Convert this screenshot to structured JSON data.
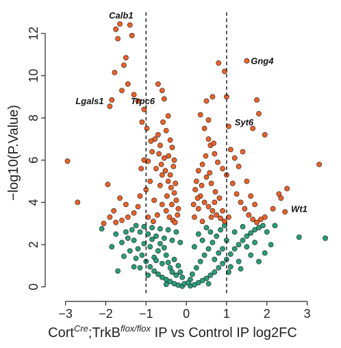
{
  "chart_data": {
    "type": "scatter",
    "title": "",
    "xlabel_parts": {
      "prefix": "Cort",
      "sup1": "Cre",
      "mid": ";TrkB",
      "sup2": "flox/flox",
      "suffix": " IP vs Control IP log2FC"
    },
    "ylabel": "−log10(P.Value)",
    "xlim": [
      -3.3,
      3.5
    ],
    "ylim": [
      -0.3,
      13.0
    ],
    "xticks": [
      -3,
      -2,
      -1,
      0,
      1,
      2,
      3
    ],
    "xtick_labels": [
      "−3",
      "−2",
      "−1",
      "0",
      "1",
      "2",
      "3"
    ],
    "yticks": [
      0,
      2,
      4,
      6,
      8,
      10,
      12
    ],
    "ytick_labels": [
      "0",
      "2",
      "4",
      "6",
      "8",
      "10",
      "12"
    ],
    "vlines": [
      -1,
      1
    ],
    "significance_threshold": 3.0,
    "colors": {
      "significant": "#e8622a",
      "not_significant": "#2a9d78",
      "point_stroke": "#1a1a1a",
      "axis": "#222222",
      "vline": "#111111"
    },
    "series": [
      {
        "points": [
          [
            -1.65,
            12.45
          ],
          [
            -1.75,
            12.2
          ],
          [
            -1.4,
            12.4
          ],
          [
            -1.35,
            11.9
          ],
          [
            -1.7,
            11.75
          ],
          [
            -1.5,
            10.85
          ],
          [
            -1.55,
            10.5
          ],
          [
            -1.78,
            10.15
          ],
          [
            -1.45,
            9.6
          ],
          [
            -1.6,
            9.3
          ],
          [
            -1.85,
            8.85
          ],
          [
            -1.9,
            8.55
          ],
          [
            -1.3,
            9.1
          ],
          [
            -1.2,
            8.8
          ],
          [
            -1.05,
            8.4
          ],
          [
            -0.98,
            7.5
          ],
          [
            -1.1,
            7.8
          ],
          [
            -0.7,
            9.6
          ],
          [
            -0.6,
            9.3
          ],
          [
            -0.55,
            8.9
          ],
          [
            -0.45,
            8.1
          ],
          [
            -0.5,
            7.4
          ],
          [
            -0.4,
            6.95
          ],
          [
            -0.35,
            6.6
          ],
          [
            -0.3,
            6.0
          ],
          [
            -0.7,
            7.2
          ],
          [
            -0.65,
            6.7
          ],
          [
            -0.85,
            6.4
          ],
          [
            -0.95,
            5.95
          ],
          [
            -0.75,
            5.6
          ],
          [
            -0.6,
            5.3
          ],
          [
            -0.45,
            5.0
          ],
          [
            -0.38,
            4.7
          ],
          [
            -0.3,
            4.45
          ],
          [
            -0.25,
            4.1
          ],
          [
            -0.9,
            5.0
          ],
          [
            -1.0,
            4.6
          ],
          [
            -1.15,
            4.3
          ],
          [
            -0.8,
            4.1
          ],
          [
            -0.6,
            3.9
          ],
          [
            -0.5,
            3.6
          ],
          [
            -0.42,
            3.3
          ],
          [
            -0.33,
            3.15
          ],
          [
            -0.28,
            3.05
          ],
          [
            -1.2,
            3.8
          ],
          [
            -1.3,
            3.5
          ],
          [
            -1.45,
            3.3
          ],
          [
            -1.6,
            3.15
          ],
          [
            -1.75,
            3.05
          ],
          [
            -0.2,
            3.7
          ],
          [
            -0.55,
            6.1
          ],
          [
            -0.65,
            4.8
          ],
          [
            -0.72,
            3.4
          ],
          [
            -0.82,
            3.1
          ],
          [
            -0.48,
            4.3
          ],
          [
            -0.36,
            3.9
          ],
          [
            -0.62,
            5.8
          ],
          [
            -0.52,
            5.5
          ],
          [
            -0.68,
            6.3
          ],
          [
            -0.58,
            7.8
          ],
          [
            -0.44,
            6.2
          ],
          [
            -0.78,
            7.0
          ],
          [
            -0.88,
            6.9
          ],
          [
            -1.05,
            6.0
          ],
          [
            -1.12,
            5.6
          ],
          [
            -0.4,
            5.3
          ],
          [
            -0.32,
            5.7
          ],
          [
            -0.27,
            4.9
          ],
          [
            -0.22,
            3.4
          ],
          [
            -0.95,
            3.3
          ],
          [
            -2.95,
            5.95
          ],
          [
            -2.7,
            4.0
          ],
          [
            -1.95,
            4.85
          ],
          [
            -1.8,
            3.6
          ],
          [
            -1.9,
            3.3
          ],
          [
            -2.05,
            3.0
          ],
          [
            -1.65,
            4.2
          ],
          [
            -1.5,
            3.9
          ],
          [
            0.35,
            8.15
          ],
          [
            0.5,
            8.8
          ],
          [
            0.45,
            7.5
          ],
          [
            0.55,
            7.0
          ],
          [
            0.6,
            6.7
          ],
          [
            0.7,
            6.3
          ],
          [
            0.4,
            5.8
          ],
          [
            0.3,
            5.5
          ],
          [
            0.25,
            5.0
          ],
          [
            0.22,
            4.6
          ],
          [
            0.35,
            4.3
          ],
          [
            0.45,
            4.0
          ],
          [
            0.55,
            3.8
          ],
          [
            0.65,
            3.6
          ],
          [
            0.75,
            3.4
          ],
          [
            0.85,
            3.25
          ],
          [
            0.95,
            3.1
          ],
          [
            0.3,
            3.7
          ],
          [
            0.2,
            3.3
          ],
          [
            0.4,
            3.1
          ],
          [
            0.5,
            5.2
          ],
          [
            0.62,
            4.9
          ],
          [
            0.72,
            4.5
          ],
          [
            0.82,
            4.2
          ],
          [
            0.9,
            5.6
          ],
          [
            1.0,
            5.3
          ],
          [
            0.78,
            5.9
          ],
          [
            0.68,
            6.8
          ],
          [
            0.58,
            5.4
          ],
          [
            0.48,
            6.2
          ],
          [
            0.8,
            10.6
          ],
          [
            0.95,
            10.2
          ],
          [
            1.0,
            9.0
          ],
          [
            0.65,
            9.0
          ],
          [
            0.55,
            7.9
          ],
          [
            1.05,
            7.6
          ],
          [
            1.1,
            6.5
          ],
          [
            1.2,
            6.1
          ],
          [
            1.3,
            5.7
          ],
          [
            1.15,
            4.9
          ],
          [
            1.25,
            4.4
          ],
          [
            1.35,
            4.0
          ],
          [
            1.45,
            3.7
          ],
          [
            1.55,
            3.4
          ],
          [
            1.65,
            3.2
          ],
          [
            1.75,
            3.05
          ],
          [
            1.5,
            5.0
          ],
          [
            1.4,
            6.4
          ],
          [
            1.6,
            4.3
          ],
          [
            1.7,
            3.9
          ],
          [
            1.5,
            10.7
          ],
          [
            1.75,
            8.85
          ],
          [
            1.8,
            8.2
          ],
          [
            1.65,
            7.5
          ],
          [
            1.95,
            7.2
          ],
          [
            1.95,
            3.3
          ],
          [
            1.85,
            3.2
          ],
          [
            2.3,
            4.4
          ],
          [
            2.35,
            4.2
          ],
          [
            2.15,
            3.7
          ],
          [
            2.5,
            4.65
          ],
          [
            2.45,
            3.55
          ],
          [
            3.3,
            5.8
          ],
          [
            0.38,
            4.8
          ],
          [
            0.28,
            4.2
          ],
          [
            0.18,
            3.9
          ],
          [
            0.62,
            3.3
          ],
          [
            0.9,
            3.6
          ],
          [
            1.05,
            3.3
          ],
          [
            0.7,
            4.0
          ]
        ]
      },
      {
        "points": [
          [
            -2.1,
            2.75
          ],
          [
            -1.75,
            2.5
          ],
          [
            -1.7,
            0.75
          ],
          [
            -1.55,
            1.45
          ],
          [
            -1.85,
            1.9
          ],
          [
            -1.6,
            2.1
          ],
          [
            -1.45,
            2.3
          ],
          [
            -1.3,
            2.2
          ],
          [
            -1.2,
            1.8
          ],
          [
            -1.1,
            1.5
          ],
          [
            -1.0,
            1.2
          ],
          [
            -0.9,
            0.95
          ],
          [
            -0.8,
            0.75
          ],
          [
            -0.7,
            0.6
          ],
          [
            -0.6,
            0.45
          ],
          [
            -0.5,
            0.35
          ],
          [
            -0.4,
            0.25
          ],
          [
            -0.3,
            0.15
          ],
          [
            -0.2,
            0.08
          ],
          [
            -0.1,
            0.03
          ],
          [
            -1.35,
            2.7
          ],
          [
            -1.15,
            2.6
          ],
          [
            -0.95,
            2.5
          ],
          [
            -0.75,
            2.4
          ],
          [
            -0.55,
            2.3
          ],
          [
            -0.35,
            2.2
          ],
          [
            -0.15,
            2.1
          ],
          [
            -1.25,
            2.9
          ],
          [
            -1.05,
            2.85
          ],
          [
            -0.85,
            2.8
          ],
          [
            -0.65,
            2.75
          ],
          [
            -0.45,
            2.7
          ],
          [
            -0.25,
            2.6
          ],
          [
            -0.9,
            1.9
          ],
          [
            -0.7,
            1.7
          ],
          [
            -0.5,
            1.5
          ],
          [
            -0.3,
            1.3
          ],
          [
            -0.2,
            1.0
          ],
          [
            -0.15,
            0.7
          ],
          [
            -0.1,
            0.45
          ],
          [
            -0.6,
            1.1
          ],
          [
            -0.4,
            0.9
          ],
          [
            -0.8,
            1.4
          ],
          [
            -1.4,
            1.7
          ],
          [
            -1.5,
            2.6
          ],
          [
            -0.05,
            0.15
          ],
          [
            -0.25,
            0.55
          ],
          [
            -0.35,
            0.7
          ],
          [
            -0.45,
            1.15
          ],
          [
            -0.55,
            1.85
          ],
          [
            -0.65,
            2.05
          ],
          [
            -0.75,
            1.25
          ],
          [
            -0.85,
            2.25
          ],
          [
            -1.05,
            2.05
          ],
          [
            -1.25,
            1.35
          ],
          [
            0.1,
            0.05
          ],
          [
            0.2,
            0.1
          ],
          [
            0.3,
            0.2
          ],
          [
            0.4,
            0.3
          ],
          [
            0.5,
            0.4
          ],
          [
            0.6,
            0.55
          ],
          [
            0.7,
            0.7
          ],
          [
            0.8,
            0.9
          ],
          [
            0.9,
            1.1
          ],
          [
            1.0,
            1.3
          ],
          [
            1.1,
            1.55
          ],
          [
            1.2,
            1.8
          ],
          [
            1.3,
            2.0
          ],
          [
            1.4,
            2.2
          ],
          [
            1.5,
            2.4
          ],
          [
            1.6,
            2.55
          ],
          [
            1.7,
            2.7
          ],
          [
            1.8,
            2.8
          ],
          [
            1.9,
            2.9
          ],
          [
            2.0,
            2.6
          ],
          [
            1.95,
            1.6
          ],
          [
            2.1,
            2.0
          ],
          [
            2.2,
            2.9
          ],
          [
            0.15,
            0.6
          ],
          [
            0.25,
            0.9
          ],
          [
            0.35,
            1.2
          ],
          [
            0.45,
            1.5
          ],
          [
            0.55,
            1.8
          ],
          [
            0.65,
            2.1
          ],
          [
            0.75,
            2.4
          ],
          [
            0.85,
            2.7
          ],
          [
            0.95,
            2.9
          ],
          [
            0.3,
            2.5
          ],
          [
            0.5,
            2.8
          ],
          [
            0.2,
            1.9
          ],
          [
            0.4,
            2.2
          ],
          [
            0.6,
            2.6
          ],
          [
            0.8,
            1.6
          ],
          [
            1.0,
            2.2
          ],
          [
            1.2,
            2.6
          ],
          [
            1.4,
            2.85
          ],
          [
            1.3,
            1.2
          ],
          [
            1.1,
            0.95
          ],
          [
            0.7,
            1.3
          ],
          [
            0.9,
            1.8
          ],
          [
            1.5,
            1.9
          ],
          [
            1.7,
            2.1
          ],
          [
            1.6,
            1.5
          ],
          [
            0.1,
            0.35
          ],
          [
            0.05,
            0.2
          ],
          [
            2.8,
            2.35
          ],
          [
            3.45,
            2.3
          ],
          [
            -0.95,
            0.55
          ],
          [
            -1.15,
            0.9
          ],
          [
            1.05,
            0.7
          ],
          [
            0.55,
            0.15
          ],
          [
            -0.5,
            0.12
          ],
          [
            1.35,
            0.85
          ],
          [
            -1.3,
            0.95
          ],
          [
            1.8,
            1.2
          ]
        ]
      }
    ],
    "annotations": [
      {
        "label": "Calb1",
        "x": -1.92,
        "y": 12.7,
        "anchor": "start"
      },
      {
        "label": "Gng4",
        "x": 1.6,
        "y": 10.55,
        "anchor": "start"
      },
      {
        "label": "Lgals1",
        "x": -2.75,
        "y": 8.65,
        "anchor": "start"
      },
      {
        "label": "Trpc6",
        "x": -1.38,
        "y": 8.65,
        "anchor": "start"
      },
      {
        "label": "Syt6",
        "x": 1.2,
        "y": 7.65,
        "anchor": "start"
      },
      {
        "label": "Wt1",
        "x": 2.6,
        "y": 3.55,
        "anchor": "start"
      }
    ]
  }
}
